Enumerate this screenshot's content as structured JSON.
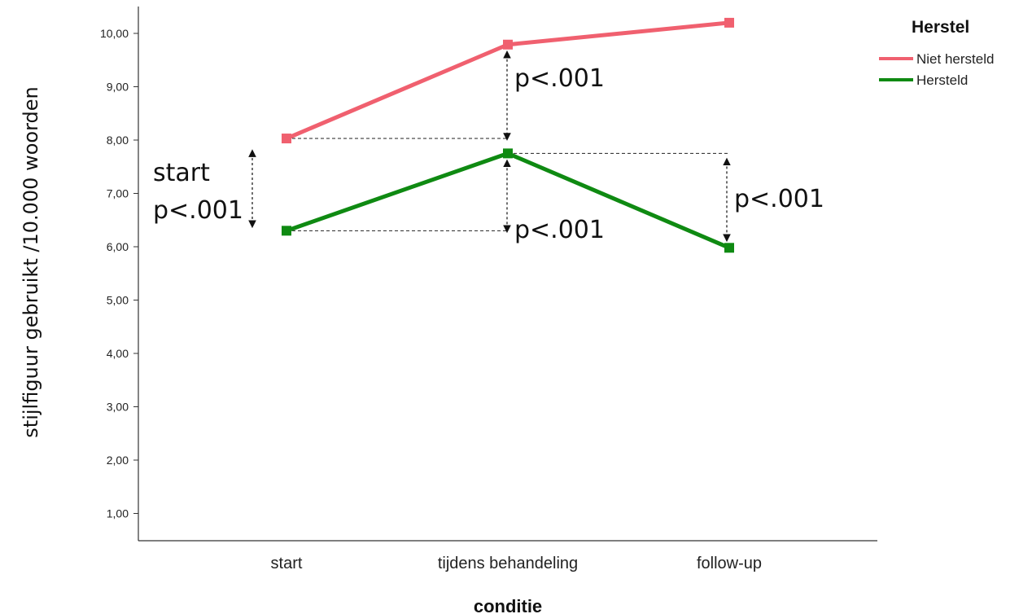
{
  "chart_data": {
    "type": "line",
    "categories": [
      "start",
      "tijdens behandeling",
      "follow-up"
    ],
    "xlabel": "conditie",
    "ylabel": "stijlfiguur gebruikt /10.000 woorden",
    "ylim": [
      0.6,
      10.5
    ],
    "yticks": [
      "1,00",
      "2,00",
      "3,00",
      "4,00",
      "5,00",
      "6,00",
      "7,00",
      "8,00",
      "9,00",
      "10,00"
    ],
    "grid": false,
    "legend": {
      "title": "Herstel",
      "placement": "top-right"
    },
    "series": [
      {
        "name": "Niet hersteld",
        "color": "#f0606f",
        "values": [
          8.03,
          9.79,
          10.2
        ]
      },
      {
        "name": "Hersteld",
        "color": "#0f8a12",
        "values": [
          6.3,
          7.75,
          5.98
        ]
      }
    ],
    "annotations": [
      {
        "text": "start",
        "text2": "p<.001",
        "category": "start"
      },
      {
        "text": "p<.001",
        "category": "tijdens behandeling",
        "between": "upper"
      },
      {
        "text": "p<.001",
        "category": "tijdens behandeling",
        "between": "lower"
      },
      {
        "text": "p<.001",
        "category": "follow-up"
      }
    ]
  }
}
